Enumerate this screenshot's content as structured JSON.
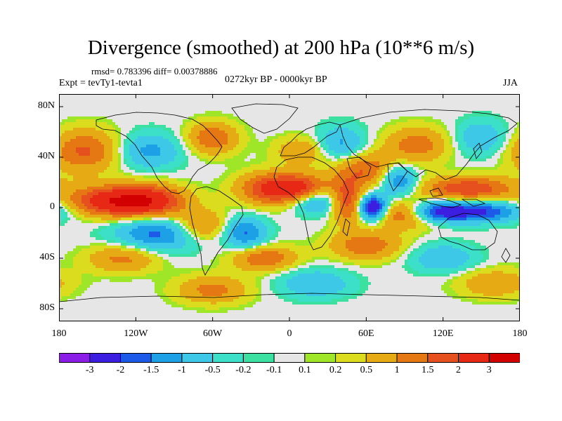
{
  "header": {
    "title": "Divergence (smoothed) at 200 hPa (10**6 m/s)",
    "stats": "rmsd= 0.783396 diff= 0.00378886",
    "experiment": "Expt = tevTy1-tevta1",
    "period": "0272kyr BP - 0000kyr BP",
    "season": "JJA"
  },
  "map": {
    "variable": "200 hPa divergence difference",
    "projection": "cylindrical equidistant",
    "lon_range": [
      -180,
      180
    ],
    "lat_range": [
      -90,
      90
    ],
    "y_ticks": [
      "80N",
      "40N",
      "0",
      "40S",
      "80S"
    ],
    "y_tick_lats": [
      80,
      40,
      0,
      -40,
      -80
    ],
    "x_ticks": [
      "180",
      "120W",
      "60W",
      "0",
      "60E",
      "120E",
      "180"
    ],
    "x_tick_lons": [
      -180,
      -120,
      -60,
      0,
      60,
      120,
      180
    ],
    "anomalies": [
      {
        "lon": -115,
        "lat": 5,
        "amp": 3.2,
        "sx": 22,
        "sy": 9
      },
      {
        "lon": -150,
        "lat": 5,
        "amp": 1.6,
        "sx": 18,
        "sy": 8
      },
      {
        "lon": -100,
        "lat": -20,
        "amp": -1.8,
        "sx": 25,
        "sy": 10
      },
      {
        "lon": -70,
        "lat": -15,
        "amp": 1.6,
        "sx": 16,
        "sy": 9
      },
      {
        "lon": -35,
        "lat": -20,
        "amp": -1.6,
        "sx": 12,
        "sy": 9
      },
      {
        "lon": -15,
        "lat": 15,
        "amp": 2.0,
        "sx": 18,
        "sy": 9
      },
      {
        "lon": 10,
        "lat": 15,
        "amp": 1.8,
        "sx": 15,
        "sy": 8
      },
      {
        "lon": 20,
        "lat": 5,
        "amp": -1.5,
        "sx": 14,
        "sy": 7
      },
      {
        "lon": 45,
        "lat": 5,
        "amp": 1.9,
        "sx": 9,
        "sy": 12
      },
      {
        "lon": 65,
        "lat": 0,
        "amp": -3.1,
        "sx": 8,
        "sy": 7
      },
      {
        "lon": 90,
        "lat": -5,
        "amp": 1.6,
        "sx": 18,
        "sy": 8
      },
      {
        "lon": 115,
        "lat": -3,
        "amp": -2.2,
        "sx": 16,
        "sy": 6
      },
      {
        "lon": 150,
        "lat": -3,
        "amp": -2.0,
        "sx": 22,
        "sy": 6
      },
      {
        "lon": 140,
        "lat": 15,
        "amp": 2.0,
        "sx": 25,
        "sy": 7
      },
      {
        "lon": 85,
        "lat": 22,
        "amp": -1.8,
        "sx": 10,
        "sy": 9
      },
      {
        "lon": 60,
        "lat": 30,
        "amp": 1.5,
        "sx": 18,
        "sy": 10
      },
      {
        "lon": -160,
        "lat": 45,
        "amp": 1.6,
        "sx": 20,
        "sy": 12
      },
      {
        "lon": -110,
        "lat": 45,
        "amp": -1.2,
        "sx": 18,
        "sy": 10
      },
      {
        "lon": -60,
        "lat": 55,
        "amp": 1.5,
        "sx": 14,
        "sy": 9
      },
      {
        "lon": 10,
        "lat": 45,
        "amp": 1.0,
        "sx": 15,
        "sy": 8
      },
      {
        "lon": 40,
        "lat": 50,
        "amp": -1.2,
        "sx": 14,
        "sy": 10
      },
      {
        "lon": 100,
        "lat": 50,
        "amp": 1.3,
        "sx": 18,
        "sy": 10
      },
      {
        "lon": 150,
        "lat": 55,
        "amp": -1.0,
        "sx": 15,
        "sy": 10
      },
      {
        "lon": -130,
        "lat": -40,
        "amp": 1.2,
        "sx": 20,
        "sy": 8
      },
      {
        "lon": -20,
        "lat": -40,
        "amp": 1.5,
        "sx": 18,
        "sy": 7
      },
      {
        "lon": 60,
        "lat": -30,
        "amp": 1.4,
        "sx": 20,
        "sy": 8
      },
      {
        "lon": 120,
        "lat": -40,
        "amp": -1.0,
        "sx": 18,
        "sy": 8
      },
      {
        "lon": -60,
        "lat": -65,
        "amp": 1.2,
        "sx": 20,
        "sy": 8
      },
      {
        "lon": 20,
        "lat": -60,
        "amp": -1.0,
        "sx": 20,
        "sy": 8
      },
      {
        "lon": 160,
        "lat": -60,
        "amp": 1.0,
        "sx": 20,
        "sy": 8
      }
    ]
  },
  "colorbar": {
    "levels": [
      "-3",
      "-2",
      "-1.5",
      "-1",
      "-0.5",
      "-0.2",
      "-0.1",
      "0.1",
      "0.2",
      "0.5",
      "1",
      "1.5",
      "2",
      "3"
    ],
    "level_values": [
      -3,
      -2,
      -1.5,
      -1,
      -0.5,
      -0.2,
      -0.1,
      0.1,
      0.2,
      0.5,
      1,
      1.5,
      2,
      3
    ],
    "colors": [
      "#8a1ee6",
      "#3b1ee0",
      "#1e5ae8",
      "#1ea0e6",
      "#3cc8e6",
      "#3ce0c8",
      "#3ce0a0",
      "#e6e6e6",
      "#a0e628",
      "#dcdc1e",
      "#e6aa14",
      "#e67814",
      "#e6501e",
      "#e62814",
      "#d20000"
    ]
  }
}
